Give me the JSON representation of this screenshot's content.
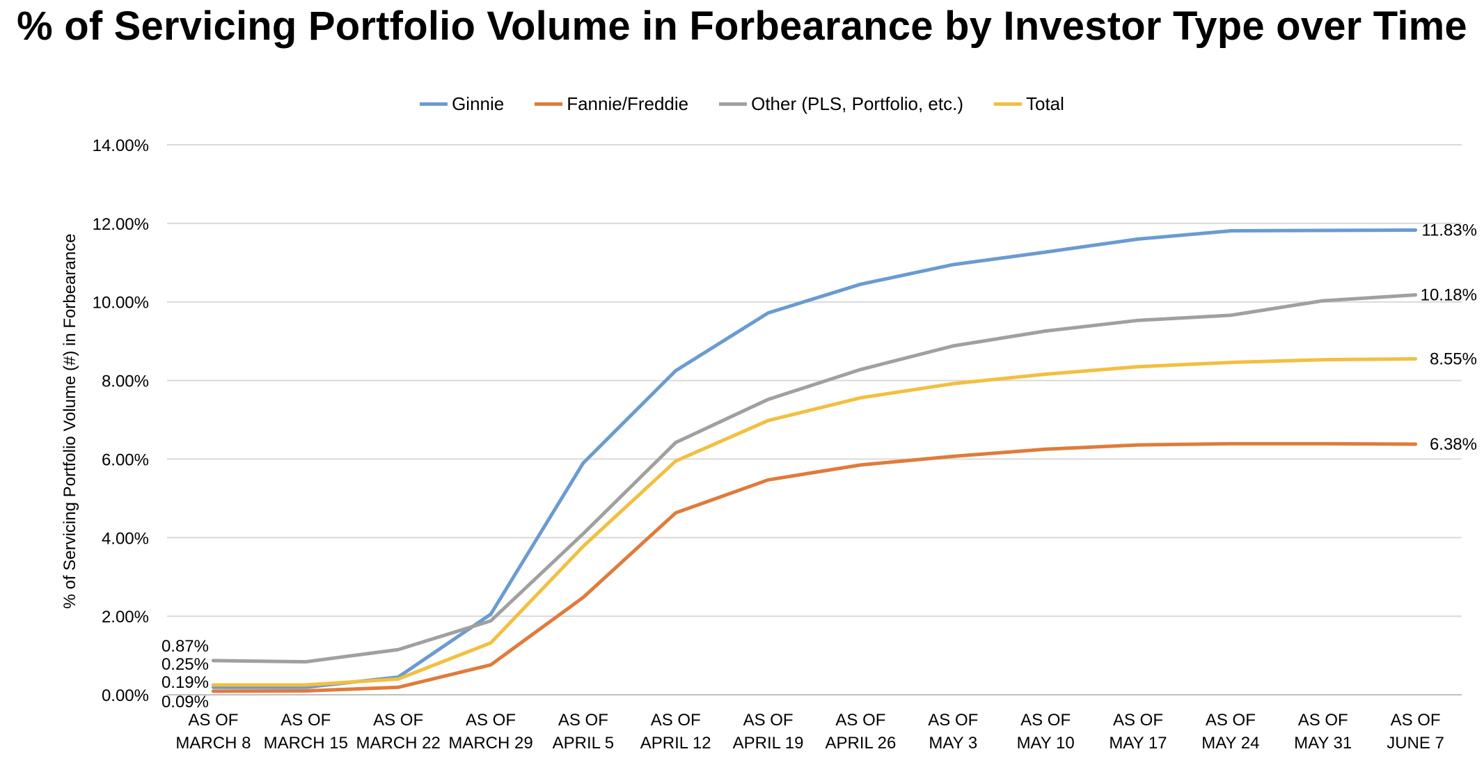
{
  "chart_data": {
    "type": "line",
    "title": "% of Servicing Portfolio Volume in Forbearance by Investor Type over Time",
    "ylabel": "% of Servicing Portfolio Volume (#) in Forbearance",
    "xlabel": "",
    "categories": [
      [
        "AS OF",
        "MARCH 8"
      ],
      [
        "AS OF",
        "MARCH 15"
      ],
      [
        "AS OF",
        "MARCH 22"
      ],
      [
        "AS OF",
        "MARCH 29"
      ],
      [
        "AS OF",
        "APRIL 5"
      ],
      [
        "AS OF",
        "APRIL 12"
      ],
      [
        "AS OF",
        "APRIL 19"
      ],
      [
        "AS OF",
        "APRIL 26"
      ],
      [
        "AS OF",
        "MAY 3"
      ],
      [
        "AS OF",
        "MAY 10"
      ],
      [
        "AS OF",
        "MAY 17"
      ],
      [
        "AS OF",
        "MAY 24"
      ],
      [
        "AS OF",
        "MAY 31"
      ],
      [
        "AS OF",
        "JUNE 7"
      ]
    ],
    "ylim": [
      0,
      14
    ],
    "yticks": [
      "0.00%",
      "2.00%",
      "4.00%",
      "6.00%",
      "8.00%",
      "10.00%",
      "12.00%",
      "14.00%"
    ],
    "grid": true,
    "legend_position": "top",
    "series": [
      {
        "name": "Ginnie",
        "color": "#6a9bd1",
        "values": [
          0.19,
          0.19,
          0.45,
          2.05,
          5.9,
          8.25,
          9.72,
          10.45,
          10.95,
          11.27,
          11.6,
          11.81,
          11.82,
          11.83
        ]
      },
      {
        "name": "Fannie/Freddie",
        "color": "#e07b3b",
        "values": [
          0.09,
          0.1,
          0.19,
          0.76,
          2.48,
          4.63,
          5.47,
          5.85,
          6.07,
          6.25,
          6.36,
          6.39,
          6.39,
          6.38
        ]
      },
      {
        "name": "Other (PLS, Portfolio, etc.)",
        "color": "#a0a0a0",
        "values": [
          0.87,
          0.84,
          1.15,
          1.88,
          4.1,
          6.42,
          7.52,
          8.28,
          8.88,
          9.26,
          9.53,
          9.66,
          10.03,
          10.18
        ]
      },
      {
        "name": "Total",
        "color": "#f2bf40",
        "values": [
          0.25,
          0.25,
          0.4,
          1.32,
          3.78,
          5.95,
          6.98,
          7.56,
          7.92,
          8.16,
          8.35,
          8.46,
          8.53,
          8.55
        ]
      }
    ],
    "start_labels": [
      "0.87%",
      "0.25%",
      "0.19%",
      "0.09%"
    ],
    "end_labels": [
      "11.83%",
      "10.18%",
      "8.55%",
      "6.38%"
    ]
  }
}
